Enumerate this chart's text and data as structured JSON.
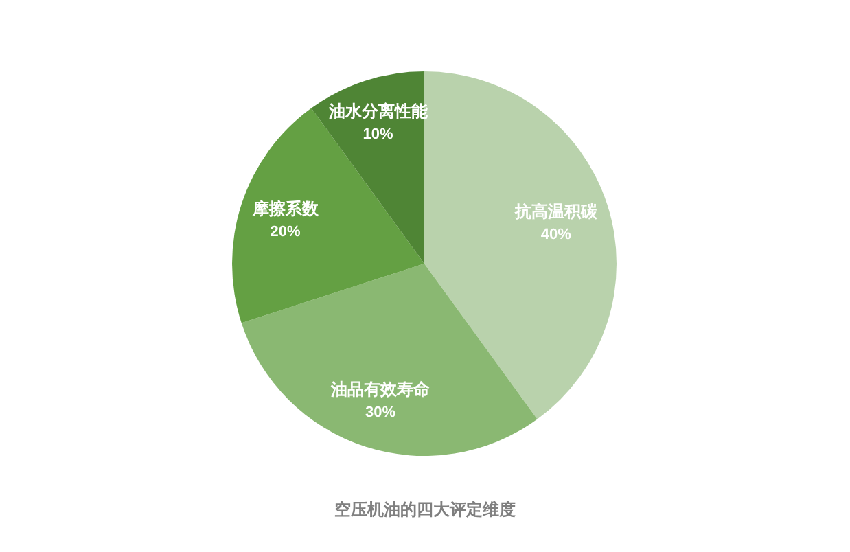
{
  "chart_data": {
    "type": "pie",
    "title": "空压机油的四大评定维度",
    "categories": [
      "抗高温积碳",
      "油品有效寿命",
      "摩擦系数",
      "油水分离性能"
    ],
    "values": [
      40,
      30,
      20,
      10
    ],
    "value_labels": [
      "40%",
      "30%",
      "20%",
      "10%"
    ],
    "colors": [
      "#b9d2ac",
      "#8ab872",
      "#64a043",
      "#4f8535"
    ]
  }
}
